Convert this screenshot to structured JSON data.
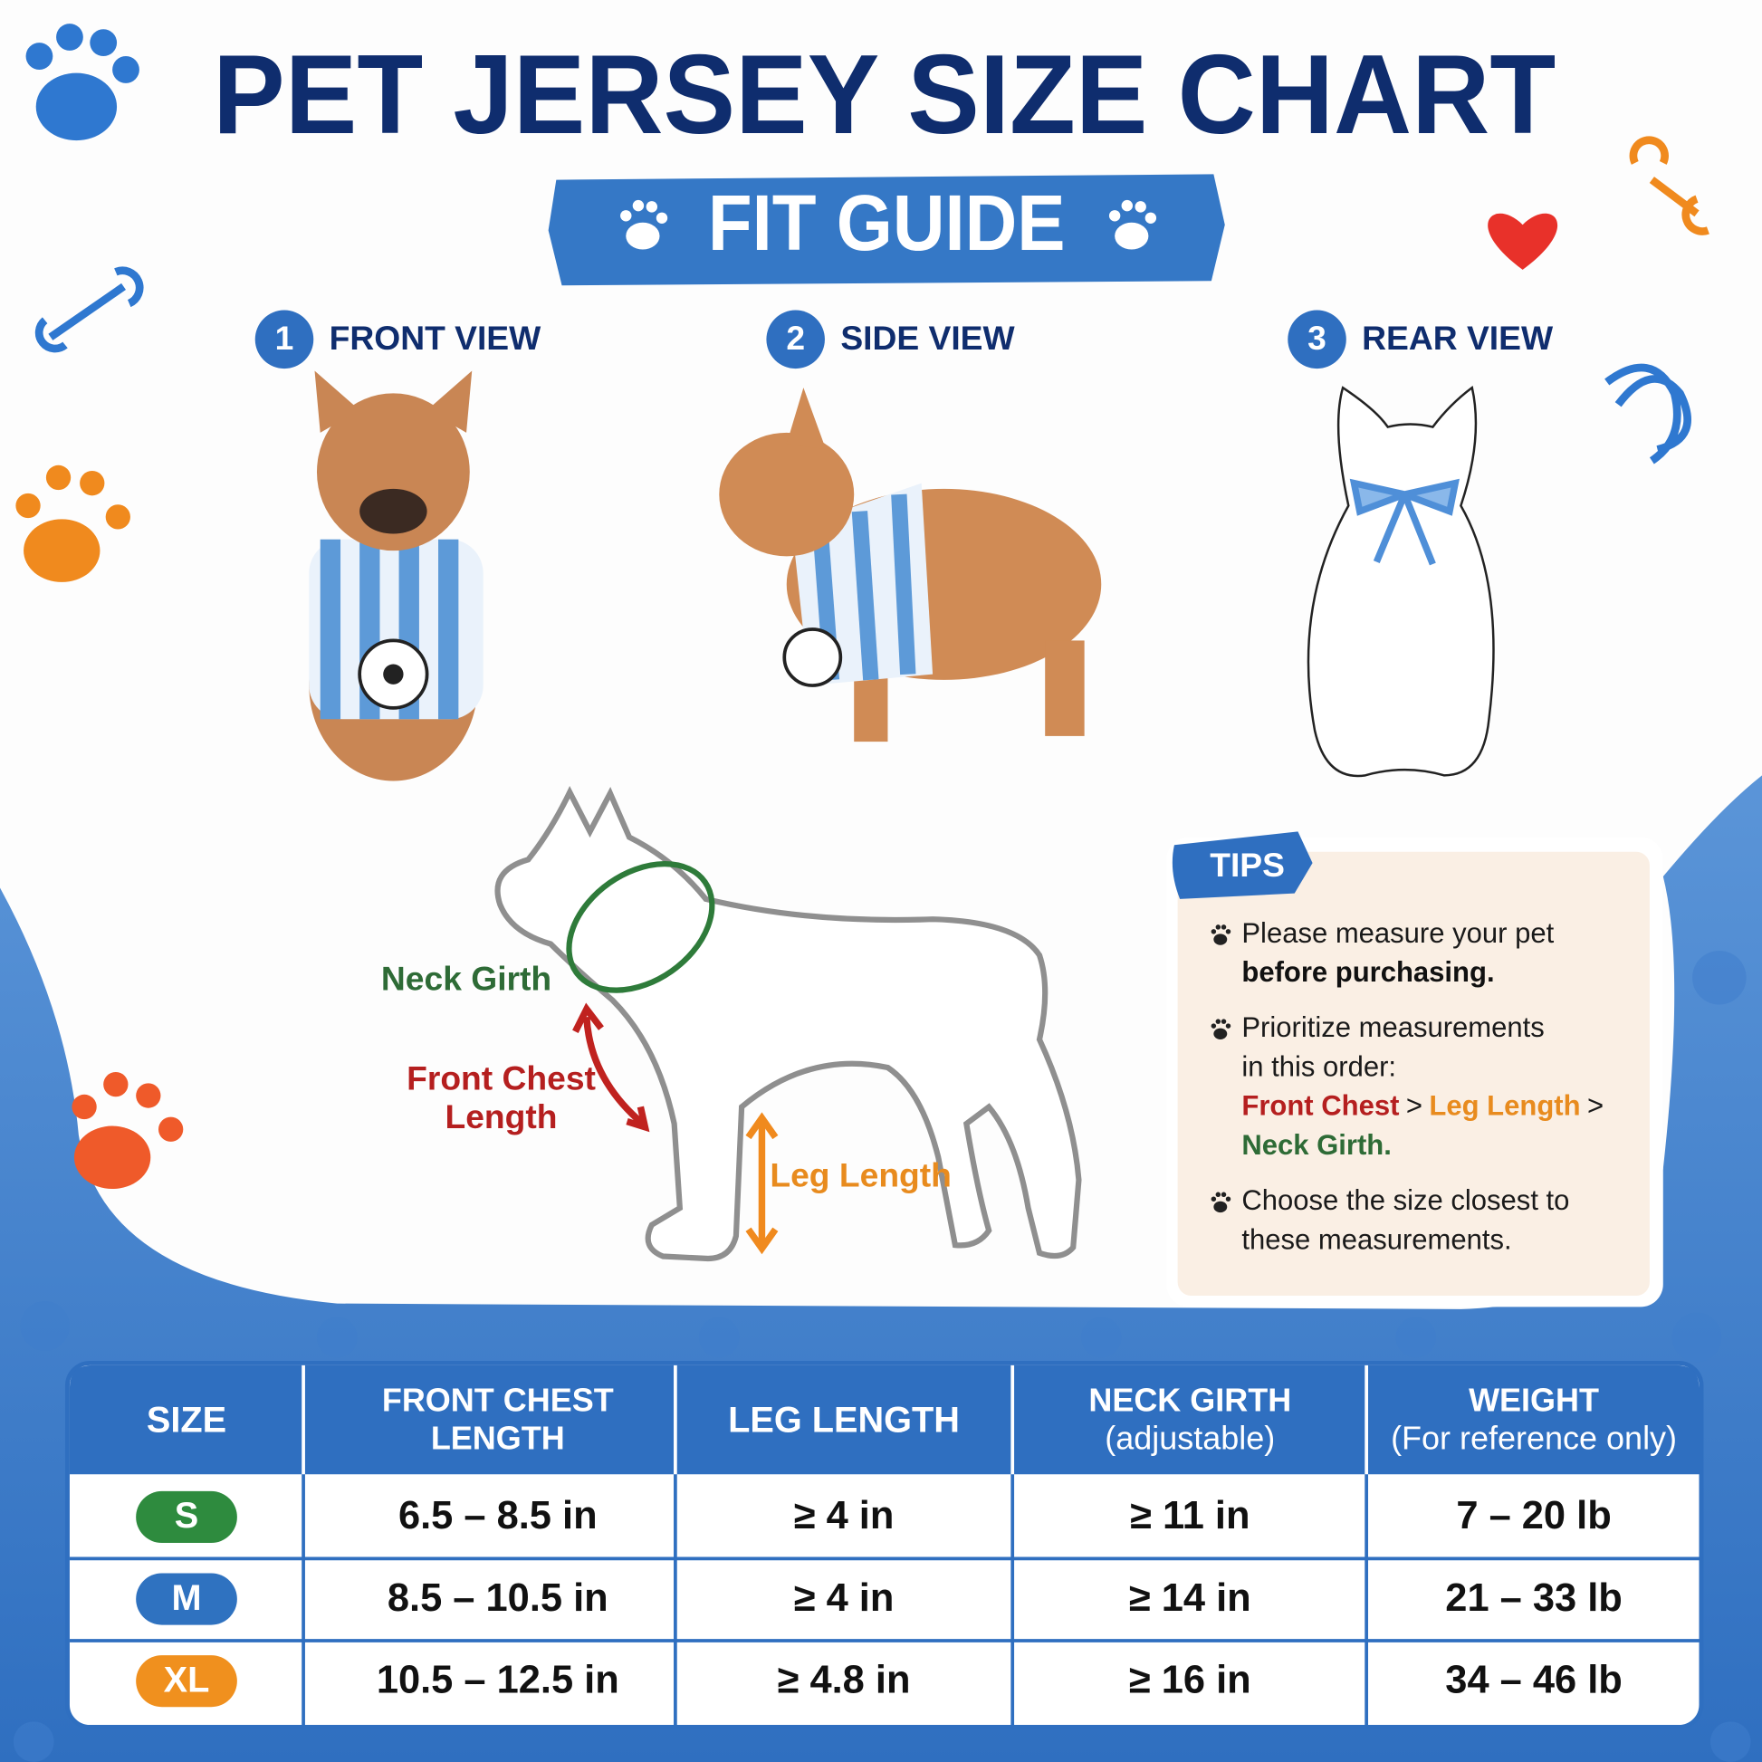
{
  "header": {
    "title": "PET JERSEY SIZE CHART",
    "subtitle": "FIT GUIDE"
  },
  "views": [
    {
      "number": "1",
      "label": "FRONT VIEW"
    },
    {
      "number": "2",
      "label": "SIDE VIEW"
    },
    {
      "number": "3",
      "label": "REAR VIEW"
    }
  ],
  "diagram": {
    "neck_girth": "Neck Girth",
    "front_chest_length": [
      "Front Chest",
      "Length"
    ],
    "leg_length": "Leg Length"
  },
  "tips": {
    "title": "TIPS",
    "items": [
      {
        "text": [
          "Please measure your pet"
        ],
        "bold": "before purchasing."
      },
      {
        "text": [
          "Prioritize measurements",
          "in this order:"
        ],
        "order": [
          "Front Chest",
          ">",
          "Leg Length",
          ">",
          "Neck Girth."
        ]
      },
      {
        "text": [
          "Choose the size closest to",
          "these measurements."
        ]
      }
    ]
  },
  "table": {
    "header": [
      [
        "SIZE"
      ],
      [
        "FRONT CHEST",
        "LENGTH"
      ],
      [
        "LEG LENGTH"
      ],
      [
        "NECK GIRTH",
        "(adjustable)"
      ],
      [
        "WEIGHT",
        "(For reference only)"
      ]
    ],
    "rows": [
      [
        "S",
        "6.5 – 8.5 in",
        "≥ 4 in",
        "≥ 11 in",
        "7 – 20 lb"
      ],
      [
        "M",
        "8.5 – 10.5 in",
        "≥ 4 in",
        "≥ 14 in",
        "21 – 33 lb"
      ],
      [
        "XL",
        "10.5 – 12.5 in",
        "≥ 4.8 in",
        "≥ 16 in",
        "34 – 46 lb"
      ]
    ]
  }
}
